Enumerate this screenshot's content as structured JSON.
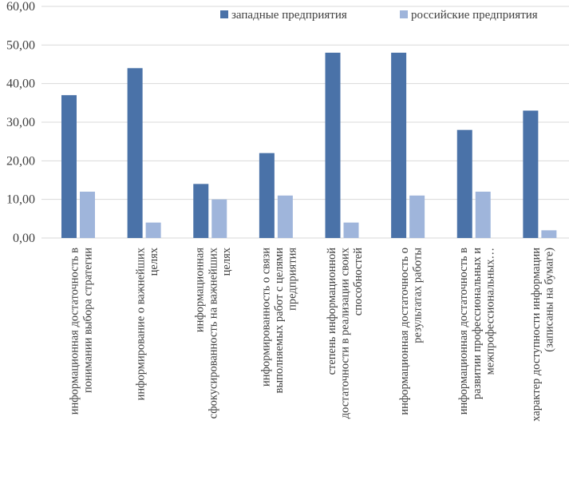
{
  "chart_data": {
    "type": "bar",
    "title": "",
    "xlabel": "",
    "ylabel": "",
    "ylim": [
      0,
      60
    ],
    "y_ticks": [
      "0,00",
      "10,00",
      "20,00",
      "30,00",
      "40,00",
      "50,00",
      "60,00"
    ],
    "grid": true,
    "legend_position": "top-right",
    "categories": [
      [
        "информационная достаточность в",
        "понимании выбора стратегии"
      ],
      [
        "информирование о важнейших",
        "целях"
      ],
      [
        "информационная",
        "сфокусированность на важнейших",
        "целях"
      ],
      [
        "информированность о связи",
        "выполняемых работ с целями",
        "предприятия"
      ],
      [
        "степень информационной",
        "достаточности в реализации своих",
        "способностей"
      ],
      [
        "информационная достаточность о",
        "результатах работы"
      ],
      [
        "информационная достаточность в",
        "развитии профессиональных и",
        "межпрофессиональных…"
      ],
      [
        "характер доступности информации",
        "(записаны на бумаге)"
      ]
    ],
    "series": [
      {
        "name": "западные предприятия",
        "color": "#4a72a8",
        "values": [
          37,
          44,
          14,
          22,
          48,
          48,
          28,
          33
        ]
      },
      {
        "name": "российские предприятия",
        "color": "#9fb5db",
        "values": [
          12,
          4,
          10,
          11,
          4,
          11,
          12,
          2
        ]
      }
    ]
  }
}
